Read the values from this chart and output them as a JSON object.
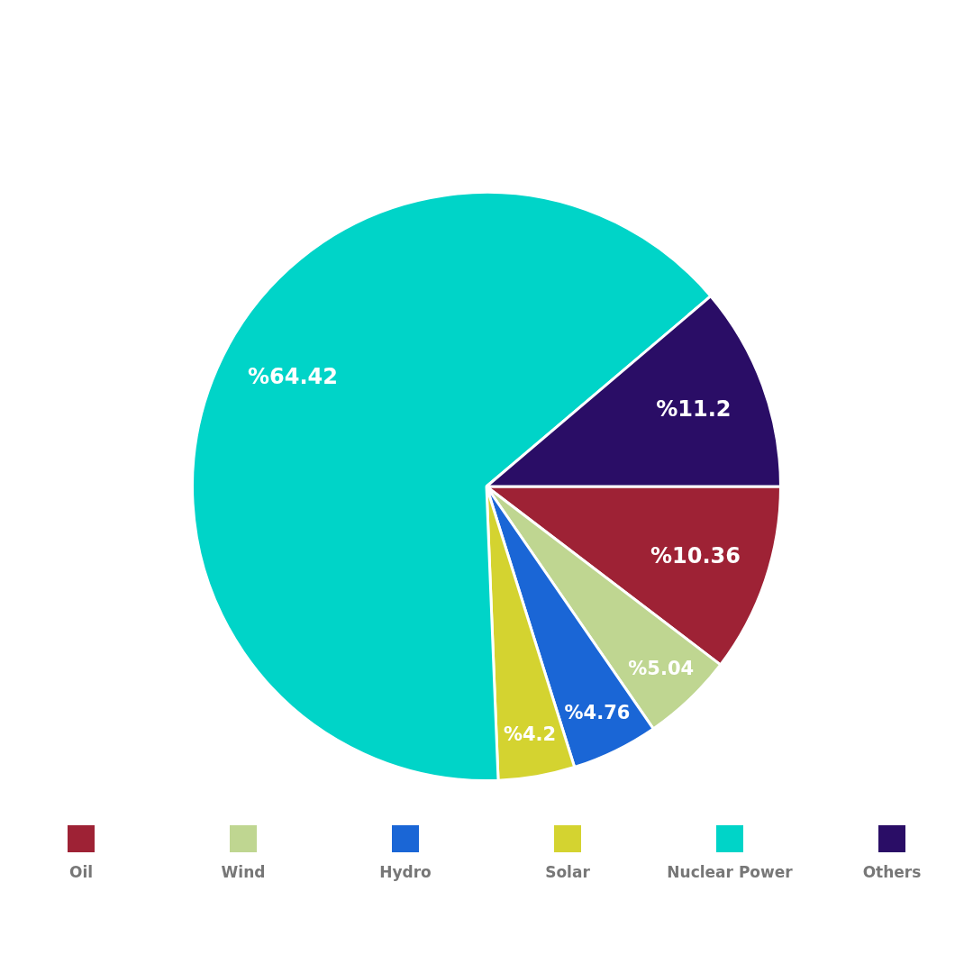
{
  "chart_data": {
    "type": "pie",
    "categories": [
      "Oil",
      "Wind",
      "Hydro",
      "Solar",
      "Nuclear Power",
      "Others"
    ],
    "values": [
      10.36,
      5.04,
      4.76,
      4.2,
      64.42,
      11.2
    ],
    "colors": [
      "#9e2235",
      "#bfd691",
      "#1a66d6",
      "#d4d330",
      "#00d4c8",
      "#2a0d66"
    ],
    "value_labels": [
      "%10.36",
      "%5.04",
      "%4.76",
      "%4.2",
      "%64.42",
      "%11.2"
    ],
    "legend": "bottom"
  }
}
